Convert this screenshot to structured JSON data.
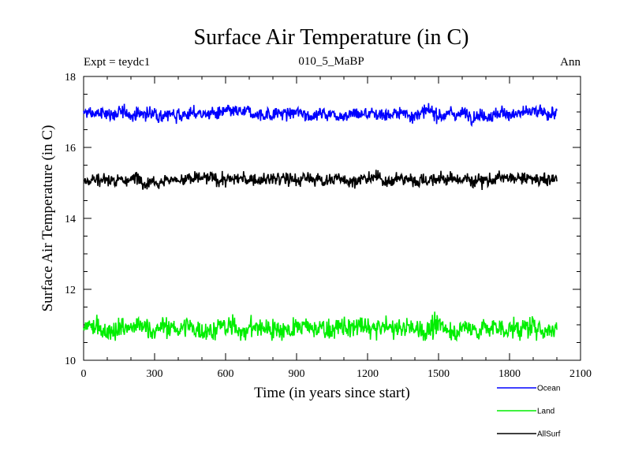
{
  "chart_data": {
    "type": "line",
    "title": "Surface Air Temperature (in C)",
    "subtitle_left": "Expt = teydc1",
    "subtitle_center": "010_5_MaBP",
    "subtitle_right": "Ann",
    "xlabel": "Time (in years since start)",
    "ylabel": "Surface Air Temperature (in C)",
    "xlim": [
      0,
      2100
    ],
    "ylim": [
      10,
      18
    ],
    "x_ticks": [
      0,
      300,
      600,
      900,
      1200,
      1500,
      1800,
      2100
    ],
    "y_ticks": [
      10,
      12,
      14,
      16,
      18
    ],
    "x_minor_step": 100,
    "y_minor_step": 0.5,
    "grid": false,
    "legend_position": "bottom-right",
    "x_range_data": [
      0,
      2000
    ],
    "series": [
      {
        "name": "Ocean",
        "color": "#0000ff",
        "mean": 16.95,
        "noise": 0.09,
        "min_approx": 16.6,
        "max_approx": 17.25
      },
      {
        "name": "Land",
        "color": "#00ee00",
        "mean": 10.9,
        "noise": 0.14,
        "min_approx": 10.55,
        "max_approx": 11.4
      },
      {
        "name": "AllSurf",
        "color": "#000000",
        "mean": 15.1,
        "noise": 0.09,
        "min_approx": 14.8,
        "max_approx": 15.45
      }
    ]
  }
}
